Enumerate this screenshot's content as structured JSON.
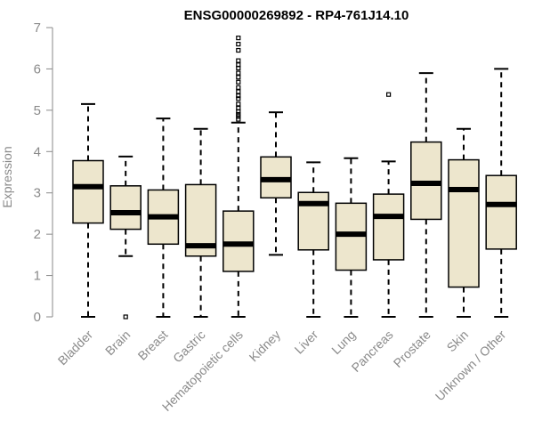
{
  "chart_data": {
    "type": "boxplot",
    "title": "ENSG00000269892 - RP4-761J14.10",
    "xlabel": "",
    "ylabel": "Expression",
    "ylim": [
      0,
      7
    ],
    "yticks": [
      0,
      1,
      2,
      3,
      4,
      5,
      6,
      7
    ],
    "box_fill": "#ede6cd",
    "categories": [
      "Bladder",
      "Brain",
      "Breast",
      "Gastric",
      "Hematopoietic cells",
      "Kidney",
      "Liver",
      "Lung",
      "Pancreas",
      "Prostate",
      "Skin",
      "Unknown / Other"
    ],
    "boxes": [
      {
        "category": "Bladder",
        "whisker_low": 0,
        "q1": 2.27,
        "median": 3.15,
        "q3": 3.78,
        "whisker_high": 5.15,
        "outliers": []
      },
      {
        "category": "Brain",
        "whisker_low": 1.47,
        "q1": 2.12,
        "median": 2.52,
        "q3": 3.17,
        "whisker_high": 3.88,
        "outliers": [
          0
        ]
      },
      {
        "category": "Breast",
        "whisker_low": 0,
        "q1": 1.76,
        "median": 2.42,
        "q3": 3.07,
        "whisker_high": 4.8,
        "outliers": []
      },
      {
        "category": "Gastric",
        "whisker_low": 0,
        "q1": 1.47,
        "median": 1.72,
        "q3": 3.2,
        "whisker_high": 4.55,
        "outliers": []
      },
      {
        "category": "Hematopoietic cells",
        "whisker_low": 0,
        "q1": 1.1,
        "median": 1.76,
        "q3": 2.56,
        "whisker_high": 4.7,
        "outliers": [
          4.78,
          4.85,
          4.9,
          4.97,
          5.05,
          5.15,
          5.28,
          5.35,
          5.45,
          5.55,
          5.68,
          5.8,
          5.9,
          6.02,
          6.1,
          6.2,
          6.45,
          6.6,
          6.75
        ]
      },
      {
        "category": "Kidney",
        "whisker_low": 1.5,
        "q1": 2.88,
        "median": 3.32,
        "q3": 3.87,
        "whisker_high": 4.95,
        "outliers": []
      },
      {
        "category": "Liver",
        "whisker_low": 0,
        "q1": 1.62,
        "median": 2.74,
        "q3": 3.01,
        "whisker_high": 3.74,
        "outliers": []
      },
      {
        "category": "Lung",
        "whisker_low": 0,
        "q1": 1.13,
        "median": 2.0,
        "q3": 2.75,
        "whisker_high": 3.84,
        "outliers": []
      },
      {
        "category": "Pancreas",
        "whisker_low": 0,
        "q1": 1.38,
        "median": 2.43,
        "q3": 2.97,
        "whisker_high": 3.76,
        "outliers": [
          5.38
        ]
      },
      {
        "category": "Prostate",
        "whisker_low": 0,
        "q1": 2.36,
        "median": 3.23,
        "q3": 4.23,
        "whisker_high": 5.9,
        "outliers": []
      },
      {
        "category": "Skin",
        "whisker_low": 0,
        "q1": 0.72,
        "median": 3.08,
        "q3": 3.8,
        "whisker_high": 4.55,
        "outliers": []
      },
      {
        "category": "Unknown / Other",
        "whisker_low": 0,
        "q1": 1.64,
        "median": 2.72,
        "q3": 3.42,
        "whisker_high": 6.0,
        "outliers": []
      }
    ]
  }
}
